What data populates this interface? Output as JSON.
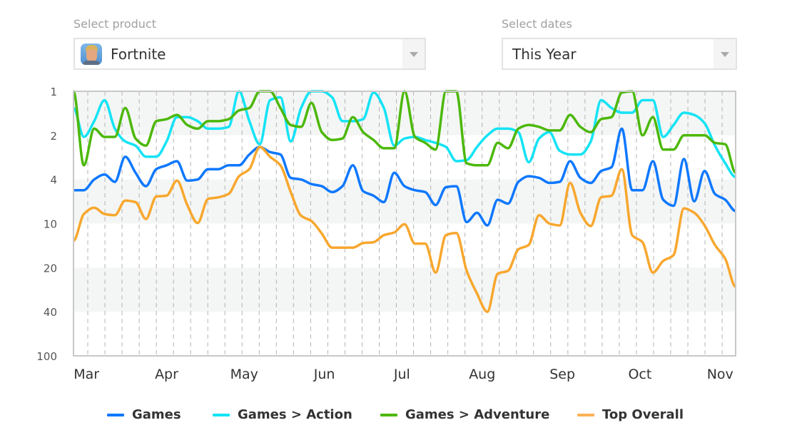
{
  "product_select": {
    "label": "Select product",
    "value": "Fortnite",
    "icon": "fortnite-app-icon"
  },
  "date_select": {
    "label": "Select dates",
    "value": "This Year"
  },
  "chart_data": {
    "type": "line",
    "title": "",
    "xlabel": "",
    "ylabel": "",
    "x_range": [
      "Feb 24",
      "Nov 7"
    ],
    "x_tick_labels": [
      "Mar",
      "Apr",
      "May",
      "Jun",
      "Jul",
      "Aug",
      "Sep",
      "Oct",
      "Nov"
    ],
    "y_scale": "rank (reversed, log-like)",
    "y_ticks": [
      1,
      2,
      4,
      10,
      20,
      40,
      100
    ],
    "y_reversed": true,
    "grid": "vertical dashed weekly lines; alternating shaded horizontal bands",
    "legend_position": "bottom",
    "x": [
      "Feb 24",
      "Feb 28",
      "Mar 4",
      "Mar 8",
      "Mar 12",
      "Mar 16",
      "Mar 20",
      "Mar 24",
      "Mar 28",
      "Apr 1",
      "Apr 5",
      "Apr 9",
      "Apr 13",
      "Apr 17",
      "Apr 21",
      "Apr 25",
      "Apr 29",
      "May 3",
      "May 7",
      "May 11",
      "May 15",
      "May 19",
      "May 23",
      "May 27",
      "May 31",
      "Jun 4",
      "Jun 8",
      "Jun 12",
      "Jun 16",
      "Jun 20",
      "Jun 24",
      "Jun 28",
      "Jul 2",
      "Jul 6",
      "Jul 10",
      "Jul 14",
      "Jul 18",
      "Jul 22",
      "Jul 26",
      "Jul 30",
      "Aug 3",
      "Aug 7",
      "Aug 11",
      "Aug 15",
      "Aug 19",
      "Aug 23",
      "Aug 27",
      "Aug 31",
      "Sep 4",
      "Sep 8",
      "Sep 12",
      "Sep 16",
      "Sep 20",
      "Sep 24",
      "Sep 28",
      "Oct 2",
      "Oct 6",
      "Oct 10",
      "Oct 14",
      "Oct 18",
      "Oct 22",
      "Oct 26",
      "Oct 30",
      "Nov 3",
      "Nov 7"
    ],
    "series": [
      {
        "name": "Games",
        "color": "#0f78ff",
        "values": [
          5,
          5,
          4,
          3.7,
          4.2,
          2.8,
          3.6,
          4.6,
          3.4,
          3.2,
          3.0,
          4.1,
          4,
          3.4,
          3.4,
          3.2,
          3.2,
          2.7,
          2.4,
          2.6,
          2.7,
          3.9,
          4,
          4.4,
          4.6,
          5.2,
          4.6,
          3.2,
          5.1,
          5.6,
          6.4,
          3.6,
          4.6,
          5,
          5.2,
          6.8,
          4.7,
          4.6,
          9.7,
          8,
          10.3,
          6.1,
          6.6,
          4.2,
          3.8,
          3.9,
          4.3,
          4.2,
          3.0,
          3.9,
          4.3,
          3.5,
          3.3,
          1.8,
          5,
          5,
          3.0,
          6.1,
          6.9,
          2.9,
          6.3,
          3.5,
          5.4,
          6.1,
          7.7
        ]
      },
      {
        "name": "Games > Action",
        "color": "#14e3f5",
        "values": [
          1.3,
          2.05,
          1.6,
          1.15,
          1.8,
          2.2,
          2.35,
          2.8,
          2.8,
          2.2,
          1.5,
          1.5,
          1.6,
          1.8,
          1.8,
          1.75,
          1.0,
          1.6,
          2.3,
          1.15,
          1.1,
          2.2,
          1.3,
          1,
          1,
          1.1,
          1.6,
          1.6,
          1.55,
          1.02,
          1.3,
          2.35,
          2.1,
          2.05,
          2.15,
          2.25,
          2.4,
          3.0,
          2.95,
          2.4,
          2,
          1.8,
          1.8,
          1.9,
          3.05,
          2.1,
          1.9,
          2.55,
          2.7,
          2.7,
          2.2,
          1.15,
          1.3,
          1.4,
          1.4,
          1.15,
          1.15,
          2.05,
          1.7,
          1.4,
          1.45,
          1.65,
          2.35,
          3.1,
          3.85
        ]
      },
      {
        "name": "Games > Adventure",
        "color": "#4cb80a",
        "values": [
          1,
          3.2,
          1.8,
          2.05,
          2.05,
          1.3,
          2.1,
          2.35,
          1.6,
          1.55,
          1.45,
          1.7,
          1.8,
          1.6,
          1.6,
          1.55,
          1.35,
          1.3,
          1,
          1,
          1.3,
          1.7,
          1.75,
          1.2,
          1.9,
          2.15,
          2.1,
          1.5,
          1.9,
          2.15,
          2.45,
          2.45,
          1,
          2.05,
          2.25,
          2.5,
          1,
          1,
          3.1,
          3.2,
          3.2,
          2.25,
          2.45,
          1.8,
          1.7,
          1.75,
          1.85,
          1.85,
          1.45,
          1.75,
          1.9,
          1.55,
          1.5,
          1.02,
          1,
          2,
          1.5,
          2.5,
          2.5,
          2,
          2,
          2,
          2.25,
          2.3,
          3.6
        ]
      },
      {
        "name": "Top Overall",
        "color": "#f8a72e",
        "values": [
          13.1,
          8.2,
          7.2,
          8.2,
          8.4,
          6.2,
          6.4,
          9.1,
          5.7,
          5.6,
          4.1,
          6.8,
          9.9,
          6,
          5.8,
          5.4,
          3.8,
          3.4,
          2.4,
          2.8,
          3.2,
          5.2,
          8.5,
          9.5,
          11.7,
          14.6,
          14.6,
          14.6,
          13.6,
          13.4,
          12,
          11.5,
          10.1,
          13.7,
          13.7,
          21.6,
          12,
          11.6,
          21,
          30,
          40,
          22,
          21,
          15,
          14,
          8.4,
          10,
          10.3,
          4.3,
          8,
          10.4,
          5.8,
          5.6,
          3.4,
          12,
          13.4,
          21.6,
          18,
          16.4,
          7.3,
          8,
          10.3,
          14,
          17.4,
          27
        ]
      }
    ]
  }
}
